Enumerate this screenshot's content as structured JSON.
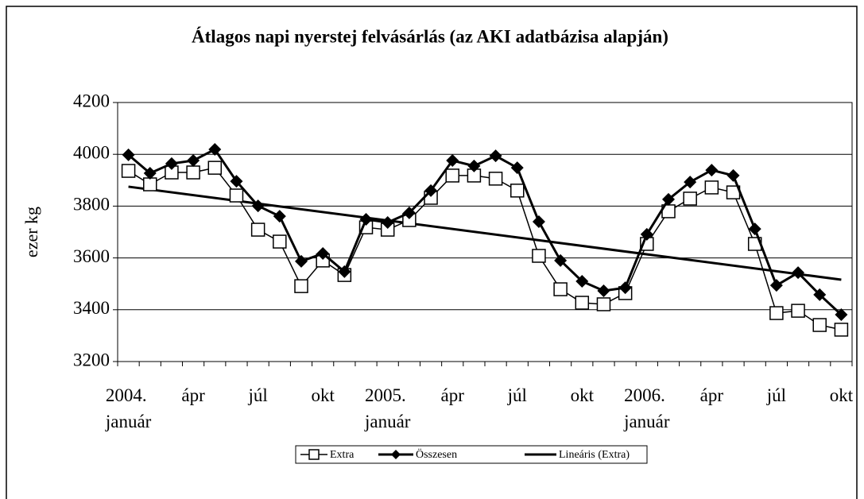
{
  "chart_data": {
    "type": "line",
    "title": "Átlagos napi nyerstej felvásárlás (az AKI adatbázisa alapján)",
    "y_label": "ezer kg",
    "categories": [
      "2004.\njanuár",
      null,
      null,
      "ápr",
      null,
      null,
      "júl",
      null,
      null,
      "okt",
      null,
      null,
      "2005.\njanuár",
      null,
      null,
      "ápr",
      null,
      null,
      "júl",
      null,
      null,
      "okt",
      null,
      null,
      "2006.\njanuár",
      null,
      null,
      "ápr",
      null,
      null,
      "júl",
      null,
      null,
      "okt"
    ],
    "series": [
      {
        "name": "Extra",
        "color": "#000000",
        "marker": "square",
        "values": [
          3936,
          3884,
          3930,
          3930,
          3948,
          3841,
          3709,
          3663,
          3491,
          3590,
          3534,
          3718,
          3709,
          3746,
          3832,
          3918,
          3918,
          3906,
          3860,
          3608,
          3479,
          3427,
          3421,
          3464,
          3654,
          3780,
          3829,
          3872,
          3853,
          3654,
          3387,
          3396,
          3341,
          3323
        ]
      },
      {
        "name": "Összesen",
        "color": "#000000",
        "marker": "diamond",
        "values": [
          3998,
          3927,
          3964,
          3976,
          4019,
          3896,
          3801,
          3761,
          3587,
          3617,
          3547,
          3749,
          3737,
          3774,
          3860,
          3976,
          3955,
          3994,
          3948,
          3740,
          3590,
          3510,
          3473,
          3485,
          3691,
          3826,
          3893,
          3939,
          3918,
          3712,
          3494,
          3543,
          3458,
          3381
        ]
      }
    ],
    "trendline": {
      "name": "Lineáris (Extra)",
      "color": "#000000",
      "start": 3875,
      "end": 3516
    },
    "ylim": [
      3200,
      4200
    ],
    "yticks": [
      3200,
      3400,
      3600,
      3800,
      4000,
      4200
    ],
    "grid": true,
    "legend": "bottom"
  }
}
